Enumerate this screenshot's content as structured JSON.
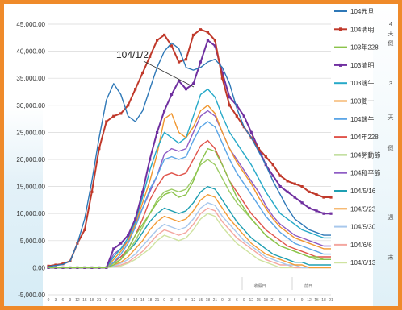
{
  "chart_data": {
    "type": "line",
    "y_ticks": [
      "45,000.00",
      "40,000.00",
      "35,000.00",
      "30,000.00",
      "25,000.00",
      "20,000.00",
      "15,000.00",
      "10,000.00",
      "5,000.00",
      "0.00",
      "-5,000.00"
    ],
    "ylim": [
      -5000,
      45000
    ],
    "x_ticks": [
      "0",
      "3",
      "6",
      "9",
      "12",
      "15",
      "18",
      "21",
      "0",
      "3",
      "6",
      "9",
      "12",
      "15",
      "18",
      "21",
      "0",
      "3",
      "6",
      "9",
      "12",
      "15",
      "18",
      "21",
      "0",
      "3",
      "6",
      "9",
      "12",
      "15",
      "18",
      "21",
      "0",
      "3",
      "6",
      "9",
      "12",
      "15",
      "18",
      "21"
    ],
    "annotation": "104/1/2",
    "grid": true,
    "legend_position": "right",
    "side_labels": [
      "4",
      "天",
      "假",
      "3",
      "天",
      "假",
      "週",
      "末"
    ],
    "bottom_labels": [
      "收假日",
      "前日"
    ],
    "series": [
      {
        "name": "104元旦",
        "color": "#2e78b7",
        "values": [
          200,
          400,
          600,
          1200,
          4500,
          9000,
          16000,
          24000,
          31000,
          34000,
          32000,
          28000,
          27000,
          29000,
          33000,
          37000,
          40000,
          41500,
          40500,
          37000,
          36500,
          37000,
          38000,
          38500,
          37000,
          34000,
          29500,
          26000,
          24000,
          21500,
          19000,
          16000,
          13500,
          11000,
          9000,
          8000,
          7000,
          6500,
          6000,
          6000
        ]
      },
      {
        "name": "104清明",
        "color": "#c0392b",
        "values": [
          300,
          500,
          700,
          1200,
          4500,
          7000,
          14000,
          22000,
          27000,
          28000,
          28500,
          30000,
          33000,
          36000,
          39000,
          42000,
          43000,
          41000,
          38000,
          38500,
          43000,
          44000,
          43500,
          42000,
          35000,
          30000,
          28000,
          26000,
          24000,
          22000,
          20500,
          19000,
          17000,
          16000,
          15500,
          15000,
          14000,
          13500,
          13000,
          13000
        ]
      },
      {
        "name": "103年228",
        "color": "#8bc34a",
        "values": [
          0,
          0,
          0,
          0,
          0,
          0,
          0,
          0,
          0,
          500,
          1500,
          3500,
          6000,
          8000,
          10000,
          12000,
          13500,
          14000,
          13000,
          13500,
          16000,
          19500,
          22000,
          21500,
          19000,
          16000,
          13000,
          11000,
          9000,
          7500,
          6000,
          5000,
          4000,
          3500,
          3000,
          2500,
          2000,
          2000,
          1500,
          1500
        ]
      },
      {
        "name": "103清明",
        "color": "#7030a0",
        "values": [
          0,
          0,
          0,
          0,
          0,
          0,
          0,
          0,
          0,
          3500,
          4500,
          6000,
          9000,
          14000,
          20000,
          25000,
          29000,
          32000,
          34500,
          33000,
          34000,
          38000,
          42000,
          41000,
          36000,
          31500,
          30000,
          28000,
          25000,
          22000,
          19000,
          17000,
          15000,
          14000,
          13000,
          12000,
          11000,
          10500,
          10000,
          10000
        ]
      },
      {
        "name": "103端午",
        "color": "#26a9c8",
        "values": [
          0,
          0,
          0,
          0,
          0,
          0,
          0,
          0,
          0,
          2000,
          3500,
          5500,
          8500,
          13000,
          18000,
          22000,
          25000,
          24000,
          23000,
          24000,
          28000,
          32000,
          33000,
          31500,
          28000,
          25000,
          23000,
          21000,
          19000,
          16500,
          14000,
          12000,
          10000,
          9000,
          8000,
          7000,
          6500,
          6000,
          5500,
          5500
        ]
      },
      {
        "name": "103雙十",
        "color": "#f0962e",
        "values": [
          0,
          0,
          0,
          0,
          0,
          0,
          0,
          0,
          0,
          1500,
          3000,
          5000,
          8000,
          12000,
          16000,
          21000,
          27500,
          28500,
          25000,
          24000,
          26000,
          29000,
          30000,
          28500,
          25000,
          22000,
          19500,
          17500,
          15500,
          13000,
          11000,
          9000,
          7500,
          6500,
          5500,
          5000,
          4500,
          4000,
          3500,
          3500
        ]
      },
      {
        "name": "104端午",
        "color": "#5ba5e6",
        "values": [
          0,
          0,
          0,
          0,
          0,
          0,
          0,
          0,
          0,
          1000,
          2500,
          4500,
          7500,
          11000,
          14500,
          17000,
          20000,
          20500,
          20000,
          20500,
          23500,
          26000,
          27000,
          26000,
          23000,
          20000,
          17500,
          15500,
          13500,
          11500,
          9500,
          8000,
          6500,
          5500,
          4500,
          4000,
          3500,
          3000,
          2500,
          2500
        ]
      },
      {
        "name": "104年228",
        "color": "#e0544b",
        "values": [
          0,
          0,
          0,
          0,
          0,
          0,
          0,
          0,
          0,
          1000,
          2000,
          3500,
          6000,
          9000,
          12500,
          15000,
          17000,
          17500,
          17000,
          17500,
          20000,
          22500,
          23500,
          22000,
          19000,
          16000,
          14000,
          12000,
          10000,
          8500,
          7000,
          6000,
          5000,
          4000,
          3500,
          3000,
          2500,
          2000,
          2000,
          2000
        ]
      },
      {
        "name": "104勞動節",
        "color": "#9ccc65",
        "values": [
          0,
          0,
          0,
          0,
          0,
          0,
          0,
          0,
          0,
          800,
          1500,
          3000,
          5000,
          7500,
          10000,
          12500,
          14000,
          14500,
          14000,
          14500,
          16500,
          19000,
          20000,
          19000,
          16500,
          14000,
          12000,
          10500,
          9000,
          7500,
          6000,
          5000,
          4000,
          3500,
          3000,
          2500,
          2000,
          1500,
          1500,
          1500
        ]
      },
      {
        "name": "104和平節",
        "color": "#8e5cc4",
        "values": [
          0,
          0,
          0,
          0,
          0,
          0,
          0,
          0,
          0,
          2500,
          3500,
          5000,
          8000,
          11000,
          14000,
          17000,
          21000,
          22000,
          21500,
          22000,
          25000,
          28000,
          29000,
          28000,
          25000,
          22000,
          20000,
          18000,
          16000,
          14000,
          11500,
          9500,
          8000,
          7000,
          6000,
          5500,
          5000,
          4500,
          4000,
          4000
        ]
      },
      {
        "name": "104/5/16",
        "color": "#1f9fb2",
        "values": [
          0,
          0,
          0,
          0,
          0,
          0,
          0,
          0,
          0,
          1000,
          2000,
          3000,
          4500,
          6500,
          8500,
          10000,
          11000,
          10500,
          10000,
          10500,
          12000,
          14000,
          15000,
          14500,
          12500,
          10500,
          8500,
          7000,
          5500,
          4500,
          3500,
          2500,
          2000,
          1500,
          1000,
          1000,
          500,
          500,
          500,
          500
        ]
      },
      {
        "name": "104/5/23",
        "color": "#f39c38",
        "values": [
          0,
          0,
          0,
          0,
          0,
          0,
          0,
          0,
          0,
          500,
          1000,
          2000,
          3500,
          5000,
          7000,
          8500,
          9500,
          9000,
          8500,
          9000,
          10500,
          12500,
          13500,
          13000,
          11000,
          9000,
          7500,
          6000,
          4500,
          3500,
          2500,
          2000,
          1500,
          1000,
          500,
          500,
          0,
          0,
          0,
          0
        ]
      },
      {
        "name": "104/5/30",
        "color": "#a8c8ec",
        "values": [
          0,
          0,
          0,
          0,
          0,
          0,
          0,
          0,
          0,
          300,
          800,
          1500,
          2500,
          4000,
          5500,
          7000,
          8000,
          7500,
          7000,
          7500,
          9000,
          11000,
          12000,
          11500,
          9500,
          8000,
          6500,
          5000,
          4000,
          3000,
          2000,
          1500,
          1000,
          500,
          500,
          0,
          0,
          0,
          0,
          0
        ]
      },
      {
        "name": "104/6/6",
        "color": "#f4a7a0",
        "values": [
          0,
          0,
          0,
          0,
          0,
          0,
          0,
          0,
          0,
          200,
          500,
          1000,
          2000,
          3000,
          4500,
          6000,
          7000,
          6500,
          6000,
          6500,
          8000,
          10000,
          11000,
          10500,
          8500,
          7000,
          5500,
          4500,
          3500,
          2500,
          1500,
          1000,
          500,
          500,
          0,
          0,
          0,
          0,
          0,
          0
        ]
      },
      {
        "name": "104/6/13",
        "color": "#cfe3a0",
        "values": [
          0,
          0,
          0,
          0,
          0,
          0,
          0,
          0,
          0,
          100,
          300,
          800,
          1500,
          2500,
          3500,
          5000,
          6000,
          5500,
          5000,
          5500,
          7000,
          9000,
          10000,
          9500,
          7500,
          6000,
          4500,
          3500,
          2500,
          1500,
          1000,
          500,
          0,
          0,
          0,
          0,
          0,
          0,
          0,
          0
        ]
      }
    ]
  }
}
